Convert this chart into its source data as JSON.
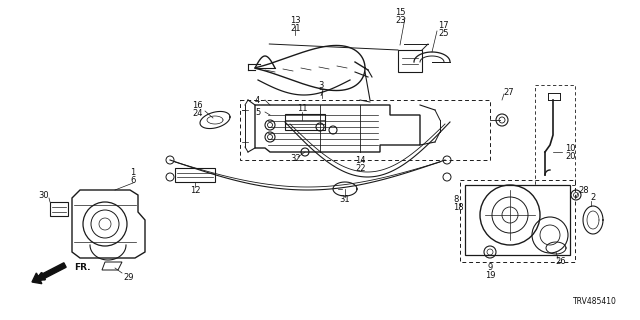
{
  "bg_color": "#ffffff",
  "line_color": "#1a1a1a",
  "diagram_code": "TRV485410",
  "figsize": [
    6.4,
    3.2
  ],
  "dpi": 100
}
